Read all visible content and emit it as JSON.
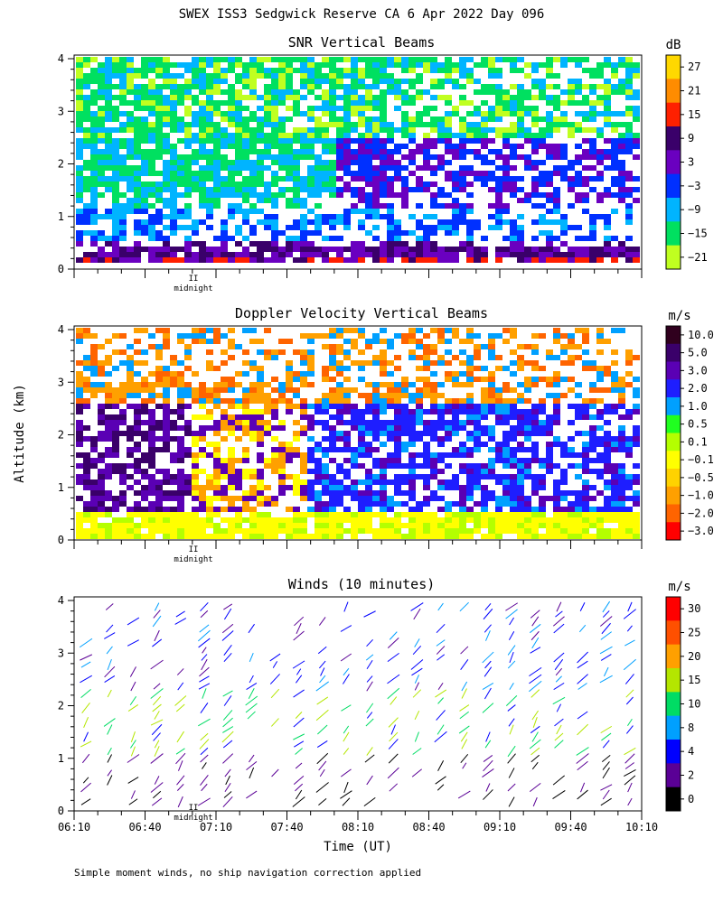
{
  "figure": {
    "title": "SWEX ISS3 Sedgwick Reserve CA   6 Apr 2022 Day 096",
    "ylabel": "Altitude (km)",
    "xlabel": "Time (UT)",
    "footnote": "Simple moment winds, no ship navigation correction applied",
    "midnight_marker": "II",
    "midnight_label": "midnight"
  },
  "chart_data": [
    {
      "type": "heatmap",
      "title": "SNR Vertical Beams",
      "unit": "dB",
      "ylim": [
        0,
        4
      ],
      "yticks": [
        "0",
        "1",
        "2",
        "3",
        "4"
      ],
      "xlim": [
        "06:10",
        "10:10"
      ],
      "colorbar": {
        "labels": [
          "27",
          "21",
          "15",
          "9",
          "3",
          "−3",
          "−9",
          "−15",
          "−21"
        ],
        "colors": [
          "#ffd800",
          "#ff8c00",
          "#ff2000",
          "#3a006a",
          "#6a00c0",
          "#0030ff",
          "#00b4ff",
          "#00e060",
          "#c0ff20"
        ]
      },
      "profile": [
        {
          "alt": 3.5,
          "snr": -15
        },
        {
          "alt": 2.5,
          "snr": -12
        },
        {
          "alt": 1.5,
          "snr": -9
        },
        {
          "alt": 0.8,
          "snr": -3
        },
        {
          "alt": 0.4,
          "snr": 3
        },
        {
          "alt": 0.15,
          "snr": 12
        }
      ]
    },
    {
      "type": "heatmap",
      "title": "Doppler Velocity Vertical Beams",
      "unit": "m/s",
      "ylim": [
        0,
        4
      ],
      "yticks": [
        "0",
        "1",
        "2",
        "3",
        "4"
      ],
      "xlim": [
        "06:10",
        "10:10"
      ],
      "colorbar": {
        "labels": [
          "10.0",
          "5.0",
          "3.0",
          "2.0",
          "1.0",
          "0.5",
          "0.1",
          "−0.1",
          "−0.5",
          "−1.0",
          "−2.0",
          "−3.0"
        ],
        "colors": [
          "#30001e",
          "#3a006a",
          "#5a00b4",
          "#1e1eff",
          "#00a0ff",
          "#20ff20",
          "#b4ff00",
          "#ffff00",
          "#ffd200",
          "#ffa000",
          "#ff6400",
          "#ff0000"
        ]
      }
    },
    {
      "type": "scatter",
      "title": "Winds (10 minutes)",
      "unit": "m/s",
      "ylim": [
        0,
        4
      ],
      "yticks": [
        "0",
        "1",
        "2",
        "3",
        "4"
      ],
      "xticks": [
        "06:10",
        "06:40",
        "07:10",
        "07:40",
        "08:10",
        "08:40",
        "09:10",
        "09:40",
        "10:10"
      ],
      "colorbar": {
        "labels": [
          "30",
          "25",
          "20",
          "15",
          "10",
          "8",
          "4",
          "2",
          "0"
        ],
        "colors": [
          "#ff0000",
          "#ff5000",
          "#ffa000",
          "#b4e600",
          "#00dc64",
          "#00a0ff",
          "#0000ff",
          "#5a0096",
          "#000000"
        ]
      }
    }
  ]
}
